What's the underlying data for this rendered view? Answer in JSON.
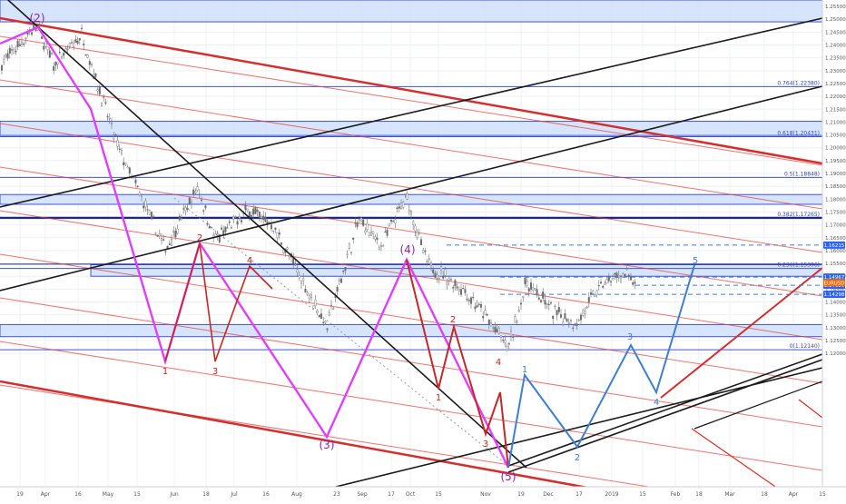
{
  "chart_data": {
    "type": "candlestick",
    "instrument": "EURUSD",
    "y_axis": {
      "ticks": [
        1.255,
        1.25,
        1.245,
        1.24,
        1.235,
        1.23,
        1.225,
        1.22,
        1.215,
        1.21,
        1.205,
        1.2,
        1.195,
        1.19,
        1.185,
        1.18,
        1.175,
        1.17,
        1.165,
        1.16,
        1.155,
        1.15,
        1.145,
        1.14,
        1.135,
        1.13,
        1.125,
        1.12
      ],
      "tick_labels": [
        "1.25500",
        "1.25000",
        "1.24500",
        "1.24000",
        "1.23500",
        "1.23000",
        "1.22500",
        "1.22000",
        "1.21500",
        "1.21000",
        "1.20500",
        "1.20000",
        "1.19500",
        "1.19000",
        "1.18500",
        "1.18000",
        "1.17500",
        "1.17000",
        "1.16500",
        "1.16000",
        "1.15500",
        "1.15000",
        "1.14500",
        "1.14000",
        "1.13500",
        "1.13000",
        "1.12500",
        "1.12000"
      ],
      "range": [
        1.1165,
        1.2575
      ]
    },
    "x_axis": {
      "tick_labels": [
        "19",
        "Apr",
        "16",
        "May",
        "15",
        "Jun",
        "18",
        "Jul",
        "16",
        "Aug",
        "23",
        "Sep",
        "17",
        "Oct",
        "15",
        "Nov",
        "19",
        "Dec",
        "17",
        "2019",
        "15",
        "Feb",
        "18",
        "Mar",
        "18",
        "Apr",
        "15"
      ]
    },
    "price_tags": [
      {
        "label": "1.16215",
        "value": 1.16215,
        "color": "#2962ff"
      },
      {
        "label": "1.14967",
        "value": 1.14967,
        "color": "#2962ff"
      },
      {
        "label": "1.14661",
        "value": 1.14661,
        "color": "#e53935"
      },
      {
        "label": "1.14650",
        "value": 1.1465,
        "color": "#2962ff"
      },
      {
        "label": "1.14298",
        "value": 1.14298,
        "color": "#2962ff"
      },
      {
        "label": "EURUSD",
        "value": 1.1475,
        "color": "#ef6c00"
      }
    ],
    "fib_levels": [
      {
        "label": "0.764(1.22380)",
        "value": 1.2238
      },
      {
        "label": "0.618(1.20431)",
        "value": 1.20431
      },
      {
        "label": "0.5(1.18848)",
        "value": 1.18848
      },
      {
        "label": "0.382(1.17265)",
        "value": 1.17265
      },
      {
        "label": "0.236(1.15306)",
        "value": 1.15306
      },
      {
        "label": "0(1.12140)",
        "value": 1.1214
      }
    ],
    "wave_labels": {
      "primary": [
        "(2)",
        "(4)",
        "(3)",
        "(5)"
      ],
      "red": [
        "2",
        "4",
        "1",
        "3",
        "2",
        "4",
        "1",
        "3"
      ],
      "blue": [
        "1",
        "3",
        "2",
        "4",
        "5"
      ]
    },
    "grid": true
  },
  "colors": {
    "red": "#e53935",
    "magenta": "#e040fb",
    "blue": "#3f7fd1",
    "zone_fill": "#cfe0fb",
    "zone_border": "#3f51e5",
    "candle": "#6d6d6d",
    "black": "#1a1a1a"
  }
}
